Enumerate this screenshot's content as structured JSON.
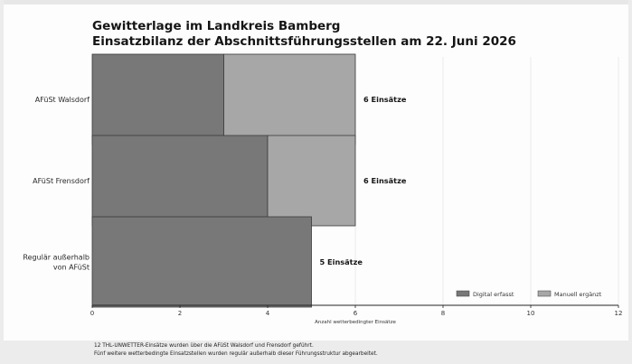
{
  "chart_data": {
    "type": "bar",
    "orientation": "horizontal",
    "stacked": true,
    "title": "Gewitterlage im Landkreis Bamberg",
    "subtitle": "Einsatzbilanz der Abschnittsführungsstellen am 22. Juni 2026",
    "xlabel": "Anzahl wetterbedingter Einsätze",
    "xlim": [
      0,
      12
    ],
    "xticks": [
      0,
      2,
      4,
      6,
      8,
      10,
      12
    ],
    "categories": [
      [
        "AFüSt Walsdorf"
      ],
      [
        "AFüSt Frensdorf"
      ],
      [
        "Regulär außerhalb",
        "von AFüSt"
      ]
    ],
    "series": [
      {
        "name": "Digital erfasst",
        "values": [
          3,
          4,
          5
        ],
        "color": "#787878"
      },
      {
        "name": "Manuell ergänzt",
        "values": [
          3,
          2,
          0
        ],
        "color": "#a7a7a7"
      }
    ],
    "data_labels": [
      "6 Einsätze",
      "6 Einsätze",
      "5 Einsätze"
    ],
    "legend_position": "bottom-right",
    "grid": "vertical",
    "notes": [
      "12 THL-UNWETTER-Einsätze wurden über die AFüSt Walsdorf und Frensdorf geführt.",
      "Fünf weitere wetterbedingte Einsatzstellen wurden regulär außerhalb dieser Führungsstruktur abgearbeitet."
    ]
  }
}
